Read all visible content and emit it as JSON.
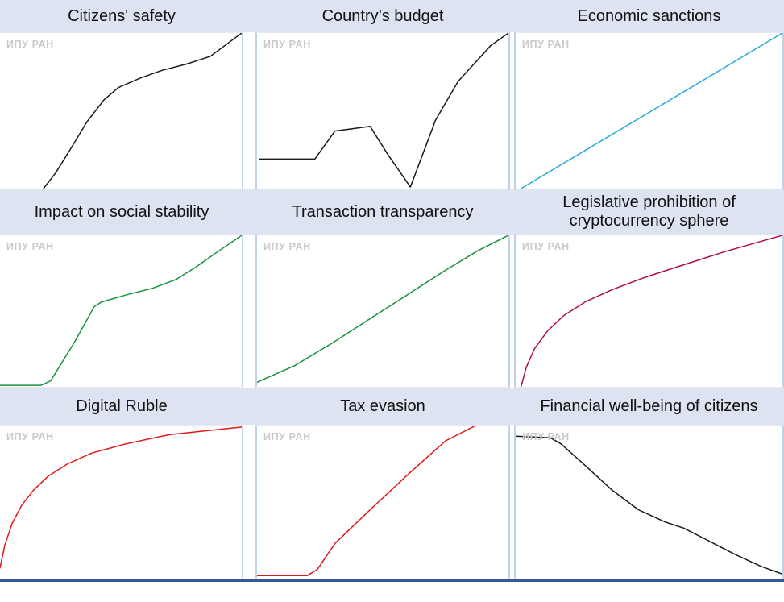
{
  "watermark": "ИПУ РАН",
  "colors": {
    "band": "#dde3f1",
    "frame": "#c2d1e6",
    "bottom_line": "#31599b"
  },
  "chart_data": [
    {
      "type": "line",
      "title": "Citizens' safety",
      "color": "#1a1a1a",
      "x": [
        18,
        23,
        29,
        36,
        43,
        49,
        52,
        58,
        67,
        77,
        87,
        100
      ],
      "y": [
        0,
        10,
        25,
        43,
        57,
        65,
        67,
        71,
        76,
        80,
        85,
        100
      ],
      "xlim": [
        0,
        100
      ],
      "ylim": [
        0,
        100
      ],
      "grid": false,
      "axes": "hidden",
      "annotations": [
        "ИПУ РАН"
      ]
    },
    {
      "type": "line",
      "title": "Country’s budget",
      "color": "#1a1a1a",
      "x": [
        1,
        23,
        31,
        45,
        52,
        61,
        71,
        80,
        93,
        100
      ],
      "y": [
        19,
        19,
        37,
        40,
        22,
        1,
        44,
        69,
        92,
        100
      ],
      "xlim": [
        0,
        100
      ],
      "ylim": [
        0,
        100
      ],
      "grid": false,
      "axes": "hidden",
      "annotations": [
        "ИПУ РАН"
      ]
    },
    {
      "type": "line",
      "title": "Economic sanctions",
      "color": "#29a9dc",
      "x": [
        2,
        100
      ],
      "y": [
        0,
        100
      ],
      "xlim": [
        0,
        100
      ],
      "ylim": [
        0,
        100
      ],
      "grid": false,
      "axes": "hidden",
      "annotations": [
        "ИПУ РАН"
      ]
    },
    {
      "type": "line",
      "title": "Impact on social stability",
      "color": "#17923d",
      "x": [
        0,
        17,
        21,
        31,
        39,
        42,
        53,
        63,
        73,
        81,
        89,
        100
      ],
      "y": [
        1,
        1,
        4,
        30,
        53,
        56,
        61,
        65,
        71,
        79,
        88,
        100
      ],
      "xlim": [
        0,
        100
      ],
      "ylim": [
        0,
        100
      ],
      "grid": false,
      "axes": "hidden",
      "annotations": [
        "ИПУ РАН"
      ]
    },
    {
      "type": "line",
      "title": "Transaction transparency",
      "color": "#17923d",
      "x": [
        0,
        15,
        30,
        45,
        60,
        75,
        88,
        100
      ],
      "y": [
        3,
        14,
        29,
        45,
        61,
        77,
        90,
        100
      ],
      "xlim": [
        0,
        100
      ],
      "ylim": [
        0,
        100
      ],
      "grid": false,
      "axes": "hidden",
      "annotations": [
        "ИПУ РАН"
      ]
    },
    {
      "type": "line",
      "title": "Legislative prohibition of cryptocurrency sphere",
      "color": "#b00c50",
      "x": [
        2,
        4,
        7,
        12,
        18,
        26,
        36,
        48,
        62,
        78,
        100
      ],
      "y": [
        0,
        13,
        25,
        37,
        47,
        56,
        64,
        72,
        80,
        89,
        100
      ],
      "xlim": [
        0,
        100
      ],
      "ylim": [
        0,
        100
      ],
      "grid": false,
      "axes": "hidden",
      "annotations": [
        "ИПУ РАН"
      ]
    },
    {
      "type": "line",
      "title": "Digital Ruble",
      "color": "#e01717",
      "x": [
        0,
        2,
        5,
        9,
        14,
        20,
        28,
        38,
        52,
        70,
        100
      ],
      "y": [
        7,
        22,
        36,
        48,
        58,
        67,
        75,
        82,
        88,
        94,
        99
      ],
      "xlim": [
        0,
        100
      ],
      "ylim": [
        0,
        100
      ],
      "grid": false,
      "axes": "hidden",
      "annotations": [
        "ИПУ РАН"
      ]
    },
    {
      "type": "line",
      "title": "Tax evasion",
      "color": "#e01717",
      "x": [
        0,
        20,
        24,
        31,
        45,
        60,
        75,
        87
      ],
      "y": [
        2,
        2,
        6,
        23,
        45,
        68,
        90,
        100
      ],
      "xlim": [
        0,
        100
      ],
      "ylim": [
        0,
        100
      ],
      "grid": false,
      "axes": "hidden",
      "annotations": [
        "ИПУ РАН"
      ]
    },
    {
      "type": "line",
      "title": "Financial well-being of citizens",
      "color": "#1a1a1a",
      "x": [
        0,
        13,
        17,
        26,
        36,
        46,
        56,
        63,
        72,
        82,
        92,
        100
      ],
      "y": [
        93,
        92,
        88,
        74,
        58,
        45,
        37,
        33,
        25,
        16,
        8,
        3
      ],
      "xlim": [
        0,
        100
      ],
      "ylim": [
        0,
        100
      ],
      "grid": false,
      "axes": "hidden",
      "annotations": [
        "ИПУ РАН"
      ]
    }
  ]
}
